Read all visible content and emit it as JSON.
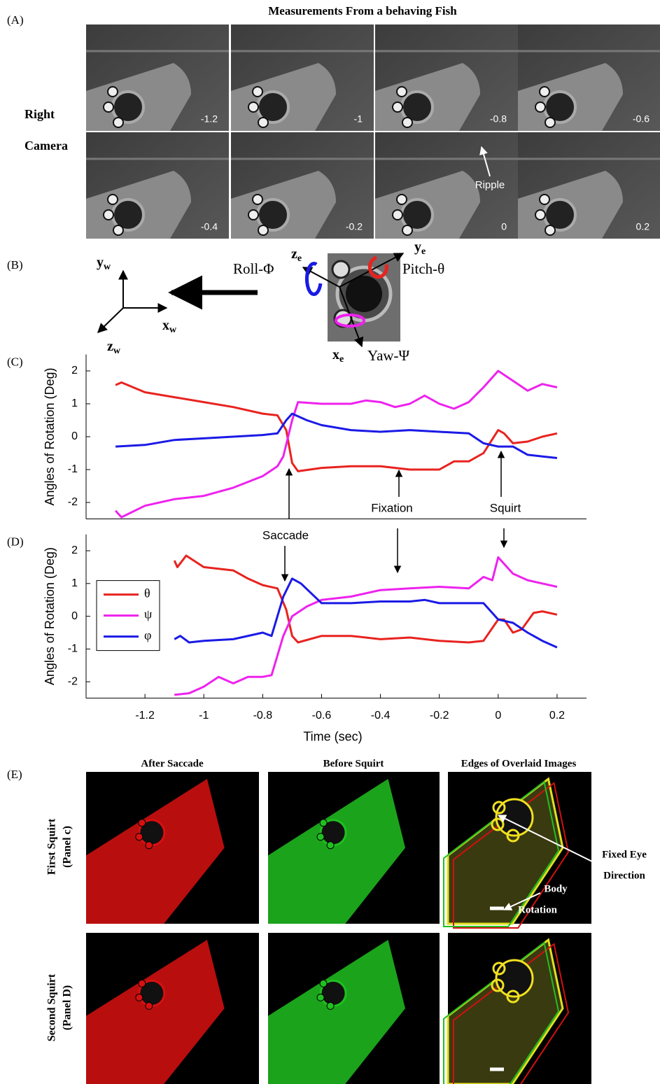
{
  "panel_a": {
    "label": "(A)",
    "title": "Measurements From a behaving Fish",
    "row_label": [
      "Right",
      "Camera"
    ],
    "frame_times": [
      "-1.2",
      "-1",
      "-0.8",
      "-0.6",
      "-0.4",
      "-0.2",
      "0",
      "0.2"
    ],
    "ripple": "Ripple"
  },
  "panel_b": {
    "label": "(B)",
    "axes": [
      {
        "symbol": "y",
        "sub": "w"
      },
      {
        "symbol": "x",
        "sub": "w"
      },
      {
        "symbol": "z",
        "sub": "w"
      },
      {
        "symbol": "z",
        "sub": "e"
      },
      {
        "symbol": "y",
        "sub": "e"
      },
      {
        "symbol": "x",
        "sub": "e"
      }
    ],
    "rotations": [
      "Roll-Φ",
      "Pitch-θ",
      "Yaw-Ψ"
    ]
  },
  "chart_data": [
    {
      "type": "line",
      "label": "(C)",
      "ylabel": "Angles of Rotation (Deg)",
      "xlim": [
        -1.4,
        0.3
      ],
      "ylim": [
        -2.5,
        2.5
      ],
      "yticks": [
        -2,
        -1,
        0,
        1,
        2
      ],
      "series": [
        {
          "color": "#e8231f",
          "x": [
            -1.3,
            -1.28,
            -1.2,
            -1.1,
            -1.0,
            -0.9,
            -0.8,
            -0.75,
            -0.72,
            -0.7,
            -0.68,
            -0.6,
            -0.5,
            -0.4,
            -0.35,
            -0.3,
            -0.2,
            -0.15,
            -0.1,
            -0.05,
            0,
            0.02,
            0.05,
            0.1,
            0.15,
            0.2
          ],
          "values": [
            1.57,
            1.65,
            1.35,
            1.2,
            1.05,
            0.9,
            0.7,
            0.65,
            0.2,
            -0.8,
            -1.05,
            -0.95,
            -0.9,
            -0.9,
            -0.95,
            -1.0,
            -1.0,
            -0.75,
            -0.75,
            -0.5,
            0.2,
            0.1,
            -0.2,
            -0.15,
            0,
            0.1
          ]
        },
        {
          "color": "#ee22ee",
          "x": [
            -1.3,
            -1.28,
            -1.2,
            -1.1,
            -1.0,
            -0.9,
            -0.8,
            -0.75,
            -0.73,
            -0.7,
            -0.68,
            -0.6,
            -0.5,
            -0.45,
            -0.4,
            -0.35,
            -0.3,
            -0.25,
            -0.2,
            -0.15,
            -0.1,
            -0.05,
            0,
            0.05,
            0.1,
            0.15,
            0.2
          ],
          "values": [
            -2.25,
            -2.45,
            -2.1,
            -1.9,
            -1.8,
            -1.55,
            -1.2,
            -0.9,
            -0.6,
            0.5,
            1.05,
            1.0,
            1.0,
            1.1,
            1.05,
            0.9,
            1.0,
            1.25,
            1.0,
            0.85,
            1.05,
            1.5,
            2.0,
            1.7,
            1.4,
            1.6,
            1.5
          ]
        },
        {
          "color": "#1a1ae6",
          "x": [
            -1.3,
            -1.2,
            -1.1,
            -1.0,
            -0.9,
            -0.8,
            -0.75,
            -0.72,
            -0.7,
            -0.65,
            -0.6,
            -0.5,
            -0.4,
            -0.3,
            -0.2,
            -0.1,
            -0.05,
            0,
            0.05,
            0.1,
            0.15,
            0.2
          ],
          "values": [
            -0.3,
            -0.25,
            -0.1,
            -0.05,
            0,
            0.05,
            0.1,
            0.5,
            0.7,
            0.5,
            0.35,
            0.2,
            0.15,
            0.2,
            0.15,
            0.1,
            -0.2,
            -0.3,
            -0.3,
            -0.55,
            -0.6,
            -0.65
          ]
        }
      ]
    },
    {
      "type": "line",
      "label": "(D)",
      "ylabel": "Angles of Rotation (Deg)",
      "xlabel": "Time (sec)",
      "xlim": [
        -1.4,
        0.3
      ],
      "ylim": [
        -2.5,
        2.5
      ],
      "yticks": [
        -2,
        -1,
        0,
        1,
        2
      ],
      "xticks": [
        -1.2,
        -1,
        -0.8,
        -0.6,
        -0.4,
        -0.2,
        0,
        0.2
      ],
      "legend": "upper left",
      "series": [
        {
          "name": "θ",
          "color": "#e8231f",
          "x": [
            -1.1,
            -1.09,
            -1.06,
            -1.0,
            -0.95,
            -0.9,
            -0.85,
            -0.8,
            -0.75,
            -0.72,
            -0.7,
            -0.68,
            -0.6,
            -0.5,
            -0.4,
            -0.3,
            -0.2,
            -0.1,
            -0.05,
            0,
            0.02,
            0.05,
            0.08,
            0.12,
            0.15,
            0.2
          ],
          "values": [
            1.7,
            1.5,
            1.85,
            1.5,
            1.45,
            1.4,
            1.15,
            0.95,
            0.85,
            0.2,
            -0.6,
            -0.8,
            -0.6,
            -0.6,
            -0.7,
            -0.65,
            -0.75,
            -0.8,
            -0.75,
            -0.1,
            -0.1,
            -0.5,
            -0.4,
            0.1,
            0.15,
            0.05
          ]
        },
        {
          "name": "ψ",
          "color": "#ee22ee",
          "x": [
            -1.1,
            -1.05,
            -1.0,
            -0.95,
            -0.9,
            -0.85,
            -0.8,
            -0.77,
            -0.73,
            -0.7,
            -0.65,
            -0.6,
            -0.5,
            -0.4,
            -0.3,
            -0.2,
            -0.1,
            -0.05,
            -0.02,
            0,
            0.05,
            0.1,
            0.15,
            0.2
          ],
          "values": [
            -2.4,
            -2.35,
            -2.15,
            -1.85,
            -2.05,
            -1.85,
            -1.85,
            -1.8,
            -0.6,
            0.0,
            0.3,
            0.5,
            0.6,
            0.8,
            0.85,
            0.9,
            0.85,
            1.2,
            1.1,
            1.8,
            1.3,
            1.1,
            1.0,
            0.9
          ]
        },
        {
          "name": "φ",
          "color": "#1a1ae6",
          "x": [
            -1.1,
            -1.08,
            -1.05,
            -1.0,
            -0.9,
            -0.8,
            -0.77,
            -0.73,
            -0.7,
            -0.67,
            -0.6,
            -0.5,
            -0.4,
            -0.3,
            -0.25,
            -0.2,
            -0.1,
            -0.05,
            0,
            0.05,
            0.1,
            0.15,
            0.2
          ],
          "values": [
            -0.7,
            -0.6,
            -0.8,
            -0.75,
            -0.7,
            -0.5,
            -0.6,
            0.6,
            1.15,
            1.0,
            0.4,
            0.4,
            0.45,
            0.45,
            0.5,
            0.4,
            0.4,
            0.4,
            -0.1,
            -0.2,
            -0.5,
            -0.75,
            -0.95
          ]
        }
      ]
    }
  ],
  "annotations": {
    "saccade": "Saccade",
    "fixation": "Fixation",
    "squirt": "Squirt"
  },
  "panel_e": {
    "label": "(E)",
    "columns": [
      "After Saccade",
      "Before Squirt",
      "Edges of Overlaid Images"
    ],
    "rows": [
      [
        "First Squirt",
        "(Panel c)"
      ],
      [
        "Second Squirt",
        "(Panel D)"
      ]
    ],
    "notes": [
      [
        "Fixed Eye",
        "Direction"
      ],
      [
        "Body",
        "Rotation"
      ]
    ]
  }
}
